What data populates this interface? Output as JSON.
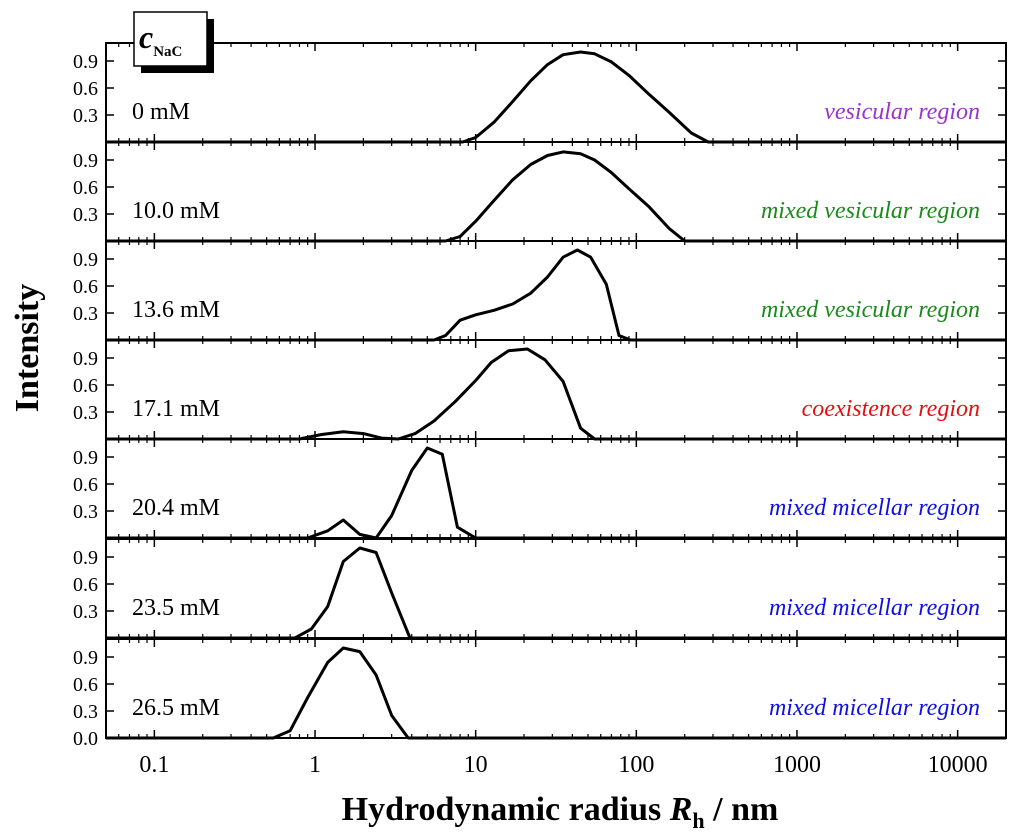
{
  "chart_data": {
    "type": "line",
    "xscale": "log",
    "xlim": [
      0.05,
      20000
    ],
    "ylim": [
      0,
      1.1
    ],
    "xlabel": "Hydrodynamic radius",
    "xlabel_symbol": "R",
    "xlabel_subscript": "h",
    "xlabel_unit": "/ nm",
    "ylabel": "Intensity",
    "x_ticks": [
      {
        "value": 0.1,
        "label": "0.1"
      },
      {
        "value": 1,
        "label": "1"
      },
      {
        "value": 10,
        "label": "10"
      },
      {
        "value": 100,
        "label": "100"
      },
      {
        "value": 1000,
        "label": "1000"
      },
      {
        "value": 10000,
        "label": "10000"
      }
    ],
    "y_ticks": [
      "0.3",
      "0.6",
      "0.9"
    ],
    "y_zero_label": "0.0",
    "legend_box": {
      "symbol": "c",
      "subscript": "NaC"
    },
    "panels": [
      {
        "concentration": "0 mM",
        "region": "vesicular region",
        "region_color": "#9933cc",
        "x": [
          8.3,
          10,
          13,
          17,
          22,
          28,
          35,
          45,
          55,
          70,
          90,
          120,
          160,
          220,
          280
        ],
        "y": [
          0,
          0.05,
          0.22,
          0.45,
          0.68,
          0.86,
          0.97,
          1.0,
          0.98,
          0.89,
          0.74,
          0.53,
          0.33,
          0.1,
          0
        ]
      },
      {
        "concentration": "10.0 mM",
        "region": "mixed vesicular region",
        "region_color": "#1a8a1a",
        "x": [
          6.5,
          8,
          10,
          13,
          17,
          22,
          28,
          35,
          45,
          55,
          70,
          90,
          120,
          160,
          200
        ],
        "y": [
          0,
          0.05,
          0.22,
          0.45,
          0.68,
          0.85,
          0.95,
          0.99,
          0.97,
          0.9,
          0.76,
          0.58,
          0.38,
          0.14,
          0
        ]
      },
      {
        "concentration": "13.6 mM",
        "region": "mixed vesicular region",
        "region_color": "#1a8a1a",
        "x": [
          5.5,
          6.5,
          8,
          10,
          13,
          17,
          22,
          28,
          35,
          43,
          52,
          65,
          78,
          92
        ],
        "y": [
          0,
          0.05,
          0.22,
          0.28,
          0.33,
          0.4,
          0.52,
          0.7,
          0.92,
          1.0,
          0.92,
          0.62,
          0.05,
          0
        ]
      },
      {
        "concentration": "17.1 mM",
        "region": "coexistence region",
        "region_color": "#e01010",
        "x": [
          0.8,
          1.1,
          1.5,
          2,
          2.6,
          3.3,
          4.2,
          5.5,
          7.5,
          10,
          12.5,
          16,
          21,
          27,
          35,
          45,
          55
        ],
        "y": [
          0,
          0.05,
          0.08,
          0.06,
          0.01,
          0,
          0.06,
          0.2,
          0.42,
          0.65,
          0.85,
          0.98,
          1.0,
          0.88,
          0.64,
          0.12,
          0
        ]
      },
      {
        "concentration": "20.4 mM",
        "region": "mixed micellar region",
        "region_color": "#1010e0",
        "x": [
          0.9,
          1.2,
          1.5,
          1.9,
          2.4,
          3,
          4,
          5,
          6.2,
          7.7,
          10
        ],
        "y": [
          0,
          0.08,
          0.2,
          0.04,
          0,
          0.25,
          0.75,
          1.0,
          0.93,
          0.12,
          0
        ]
      },
      {
        "concentration": "23.5 mM",
        "region": "mixed micellar region",
        "region_color": "#1010e0",
        "x": [
          0.75,
          0.95,
          1.2,
          1.5,
          1.9,
          2.4,
          3,
          3.9
        ],
        "y": [
          0,
          0.1,
          0.35,
          0.85,
          1.0,
          0.95,
          0.5,
          0
        ]
      },
      {
        "concentration": "26.5 mM",
        "region": "mixed micellar region",
        "region_color": "#1010e0",
        "x": [
          0.55,
          0.7,
          0.9,
          1.2,
          1.5,
          1.9,
          2.4,
          3,
          3.8
        ],
        "y": [
          0,
          0.08,
          0.45,
          0.84,
          1.0,
          0.96,
          0.7,
          0.25,
          0
        ]
      }
    ]
  }
}
